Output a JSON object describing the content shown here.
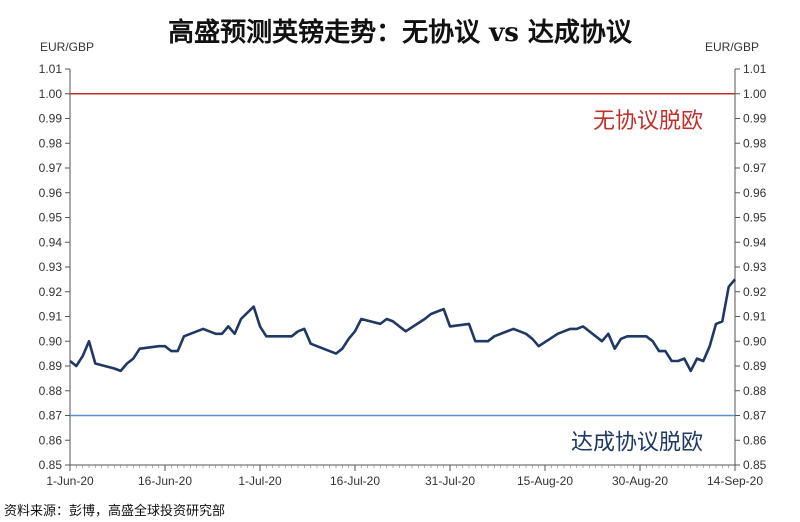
{
  "chart_data": {
    "type": "line",
    "title": "高盛预测英镑走势：无协议 vs 达成协议",
    "ylabel_left": "EUR/GBP",
    "ylabel_right": "EUR/GBP",
    "ylim": [
      0.85,
      1.01
    ],
    "yticks": [
      0.85,
      0.86,
      0.87,
      0.88,
      0.89,
      0.9,
      0.91,
      0.92,
      0.93,
      0.94,
      0.95,
      0.96,
      0.97,
      0.98,
      0.99,
      1.0,
      1.01
    ],
    "ytick_labels": [
      "0.85",
      "0.86",
      "0.87",
      "0.88",
      "0.89",
      "0.90",
      "0.91",
      "0.92",
      "0.93",
      "0.94",
      "0.95",
      "0.96",
      "0.97",
      "0.98",
      "0.99",
      "1.00",
      "1.01"
    ],
    "x_start": "2020-06-01",
    "x_end": "2020-09-14",
    "xticks": [
      "2020-06-01",
      "2020-06-16",
      "2020-07-01",
      "2020-07-16",
      "2020-07-31",
      "2020-08-15",
      "2020-08-30",
      "2020-09-14"
    ],
    "xtick_labels": [
      "1-Jun-20",
      "16-Jun-20",
      "1-Jul-20",
      "16-Jul-20",
      "31-Jul-20",
      "15-Aug-20",
      "30-Aug-20",
      "14-Sep-20"
    ],
    "reference_lines": [
      {
        "value": 1.0,
        "label": "无协议脱欧",
        "color": "#c0302b"
      },
      {
        "value": 0.87,
        "label": "达成协议脱欧",
        "color": "#5b8fc9"
      }
    ],
    "series": [
      {
        "color": "#1f3864",
        "points": [
          [
            "2020-06-01",
            0.892
          ],
          [
            "2020-06-02",
            0.89
          ],
          [
            "2020-06-03",
            0.894
          ],
          [
            "2020-06-04",
            0.9
          ],
          [
            "2020-06-05",
            0.891
          ],
          [
            "2020-06-08",
            0.889
          ],
          [
            "2020-06-09",
            0.888
          ],
          [
            "2020-06-10",
            0.891
          ],
          [
            "2020-06-11",
            0.893
          ],
          [
            "2020-06-12",
            0.897
          ],
          [
            "2020-06-15",
            0.898
          ],
          [
            "2020-06-16",
            0.898
          ],
          [
            "2020-06-17",
            0.896
          ],
          [
            "2020-06-18",
            0.896
          ],
          [
            "2020-06-19",
            0.902
          ],
          [
            "2020-06-22",
            0.905
          ],
          [
            "2020-06-23",
            0.904
          ],
          [
            "2020-06-24",
            0.903
          ],
          [
            "2020-06-25",
            0.903
          ],
          [
            "2020-06-26",
            0.906
          ],
          [
            "2020-06-27",
            0.903
          ],
          [
            "2020-06-28",
            0.909
          ],
          [
            "2020-06-30",
            0.914
          ],
          [
            "2020-07-01",
            0.906
          ],
          [
            "2020-07-02",
            0.902
          ],
          [
            "2020-07-03",
            0.902
          ],
          [
            "2020-07-06",
            0.902
          ],
          [
            "2020-07-07",
            0.904
          ],
          [
            "2020-07-08",
            0.905
          ],
          [
            "2020-07-09",
            0.899
          ],
          [
            "2020-07-10",
            0.898
          ],
          [
            "2020-07-13",
            0.895
          ],
          [
            "2020-07-14",
            0.897
          ],
          [
            "2020-07-15",
            0.901
          ],
          [
            "2020-07-16",
            0.904
          ],
          [
            "2020-07-17",
            0.909
          ],
          [
            "2020-07-20",
            0.907
          ],
          [
            "2020-07-21",
            0.909
          ],
          [
            "2020-07-22",
            0.908
          ],
          [
            "2020-07-23",
            0.906
          ],
          [
            "2020-07-24",
            0.904
          ],
          [
            "2020-07-27",
            0.909
          ],
          [
            "2020-07-28",
            0.911
          ],
          [
            "2020-07-29",
            0.912
          ],
          [
            "2020-07-30",
            0.913
          ],
          [
            "2020-07-31",
            0.906
          ],
          [
            "2020-08-03",
            0.907
          ],
          [
            "2020-08-04",
            0.9
          ],
          [
            "2020-08-05",
            0.9
          ],
          [
            "2020-08-06",
            0.9
          ],
          [
            "2020-08-07",
            0.902
          ],
          [
            "2020-08-10",
            0.905
          ],
          [
            "2020-08-11",
            0.904
          ],
          [
            "2020-08-12",
            0.903
          ],
          [
            "2020-08-13",
            0.901
          ],
          [
            "2020-08-14",
            0.898
          ],
          [
            "2020-08-17",
            0.903
          ],
          [
            "2020-08-18",
            0.904
          ],
          [
            "2020-08-19",
            0.905
          ],
          [
            "2020-08-20",
            0.905
          ],
          [
            "2020-08-21",
            0.906
          ],
          [
            "2020-08-24",
            0.9
          ],
          [
            "2020-08-25",
            0.903
          ],
          [
            "2020-08-26",
            0.897
          ],
          [
            "2020-08-27",
            0.901
          ],
          [
            "2020-08-28",
            0.902
          ],
          [
            "2020-08-31",
            0.902
          ],
          [
            "2020-09-01",
            0.9
          ],
          [
            "2020-09-02",
            0.896
          ],
          [
            "2020-09-03",
            0.896
          ],
          [
            "2020-09-04",
            0.892
          ],
          [
            "2020-09-05",
            0.892
          ],
          [
            "2020-09-06",
            0.893
          ],
          [
            "2020-09-07",
            0.888
          ],
          [
            "2020-09-08",
            0.893
          ],
          [
            "2020-09-09",
            0.892
          ],
          [
            "2020-09-10",
            0.898
          ],
          [
            "2020-09-11",
            0.907
          ],
          [
            "2020-09-12",
            0.908
          ],
          [
            "2020-09-13",
            0.922
          ],
          [
            "2020-09-14",
            0.925
          ]
        ]
      }
    ],
    "grid": false
  },
  "source": "资料来源：彭博，高盛全球投资研究部"
}
